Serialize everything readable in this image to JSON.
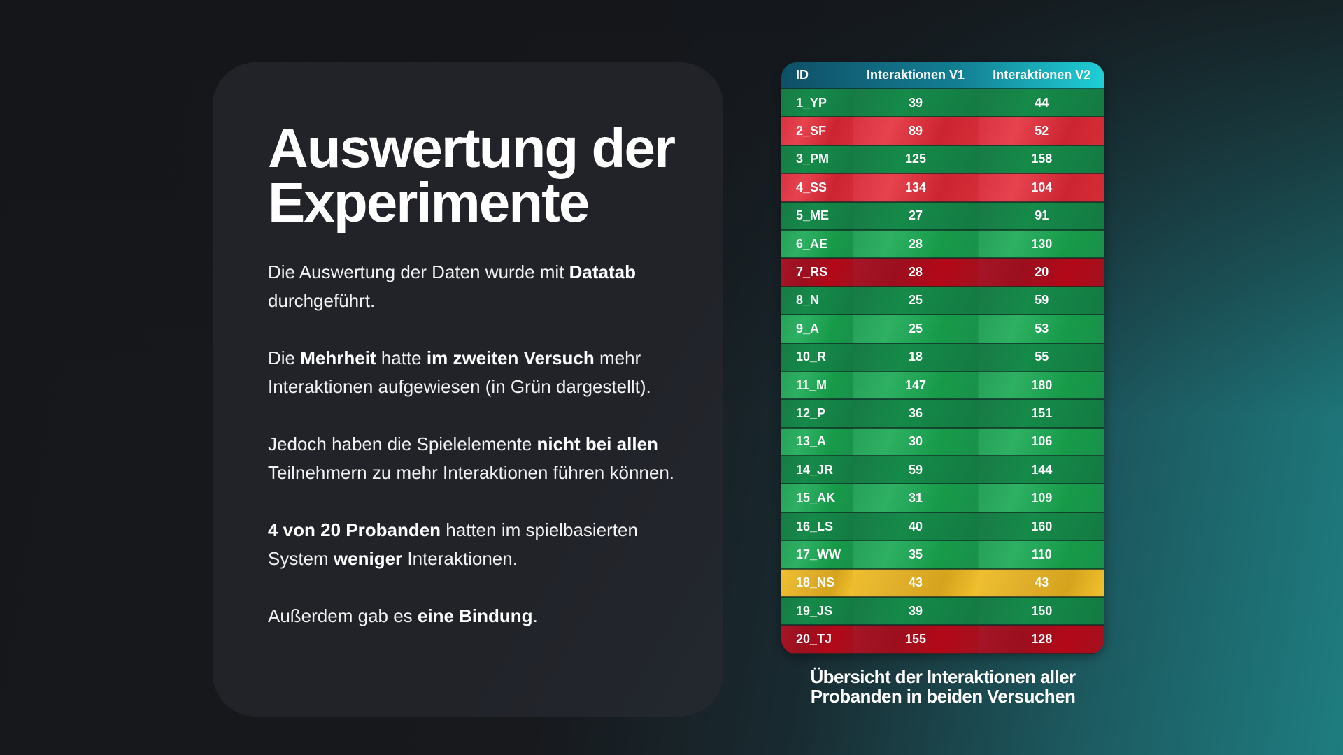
{
  "slide": {
    "title": "Auswertung der Experimente",
    "paragraphs": [
      {
        "segments": [
          {
            "text": "Die Auswertung der Daten wurde mit ",
            "bold": false
          },
          {
            "text": "Datatab",
            "bold": true
          },
          {
            "text": " durchgeführt.",
            "bold": false
          }
        ]
      },
      {
        "segments": [
          {
            "text": "Die ",
            "bold": false
          },
          {
            "text": "Mehrheit",
            "bold": true
          },
          {
            "text": " hatte ",
            "bold": false
          },
          {
            "text": "im zweiten Versuch",
            "bold": true
          },
          {
            "text": " mehr Interaktionen aufgewiesen (in Grün dargestellt).",
            "bold": false
          }
        ]
      },
      {
        "segments": [
          {
            "text": "Jedoch haben die Spielelemente ",
            "bold": false
          },
          {
            "text": "nicht bei allen",
            "bold": true
          },
          {
            "text": " Teilnehmern zu mehr Interaktionen führen können.",
            "bold": false
          }
        ]
      },
      {
        "segments": [
          {
            "text": "4 von 20 Probanden",
            "bold": true
          },
          {
            "text": " hatten im spielbasierten System ",
            "bold": false
          },
          {
            "text": "weniger",
            "bold": true
          },
          {
            "text": " Interaktionen.",
            "bold": false
          }
        ]
      },
      {
        "segments": [
          {
            "text": "Außerdem gab es ",
            "bold": false
          },
          {
            "text": "eine Bindung",
            "bold": true
          },
          {
            "text": ".",
            "bold": false
          }
        ]
      }
    ]
  },
  "table": {
    "headers": [
      "ID",
      "Interaktionen V1",
      "Interaktionen V2"
    ],
    "rows": [
      {
        "id": "1_YP",
        "v1": "39",
        "v2": "44",
        "status": "green-dark"
      },
      {
        "id": "2_SF",
        "v1": "89",
        "v2": "52",
        "status": "red"
      },
      {
        "id": "3_PM",
        "v1": "125",
        "v2": "158",
        "status": "green-dark"
      },
      {
        "id": "4_SS",
        "v1": "134",
        "v2": "104",
        "status": "red"
      },
      {
        "id": "5_ME",
        "v1": "27",
        "v2": "91",
        "status": "green-dark"
      },
      {
        "id": "6_AE",
        "v1": "28",
        "v2": "130",
        "status": "green-light"
      },
      {
        "id": "7_RS",
        "v1": "28",
        "v2": "20",
        "status": "red-dark"
      },
      {
        "id": "8_N",
        "v1": "25",
        "v2": "59",
        "status": "green-dark"
      },
      {
        "id": "9_A",
        "v1": "25",
        "v2": "53",
        "status": "green-light"
      },
      {
        "id": "10_R",
        "v1": "18",
        "v2": "55",
        "status": "green-dark"
      },
      {
        "id": "11_M",
        "v1": "147",
        "v2": "180",
        "status": "green-light"
      },
      {
        "id": "12_P",
        "v1": "36",
        "v2": "151",
        "status": "green-dark"
      },
      {
        "id": "13_A",
        "v1": "30",
        "v2": "106",
        "status": "green-light"
      },
      {
        "id": "14_JR",
        "v1": "59",
        "v2": "144",
        "status": "green-dark"
      },
      {
        "id": "15_AK",
        "v1": "31",
        "v2": "109",
        "status": "green-light"
      },
      {
        "id": "16_LS",
        "v1": "40",
        "v2": "160",
        "status": "green-dark"
      },
      {
        "id": "17_WW",
        "v1": "35",
        "v2": "110",
        "status": "green-light"
      },
      {
        "id": "18_NS",
        "v1": "43",
        "v2": "43",
        "status": "yellow"
      },
      {
        "id": "19_JS",
        "v1": "39",
        "v2": "150",
        "status": "green-dark"
      },
      {
        "id": "20_TJ",
        "v1": "155",
        "v2": "128",
        "status": "red-dark"
      }
    ],
    "caption": "Übersicht der Interaktionen aller Probanden in beiden Versuchen"
  },
  "colors": {
    "increase": "#1a8a4a",
    "decrease": "#d8323f",
    "tie": "#e3b22a",
    "header_start": "#0f4f66",
    "header_end": "#1fcfd6"
  }
}
